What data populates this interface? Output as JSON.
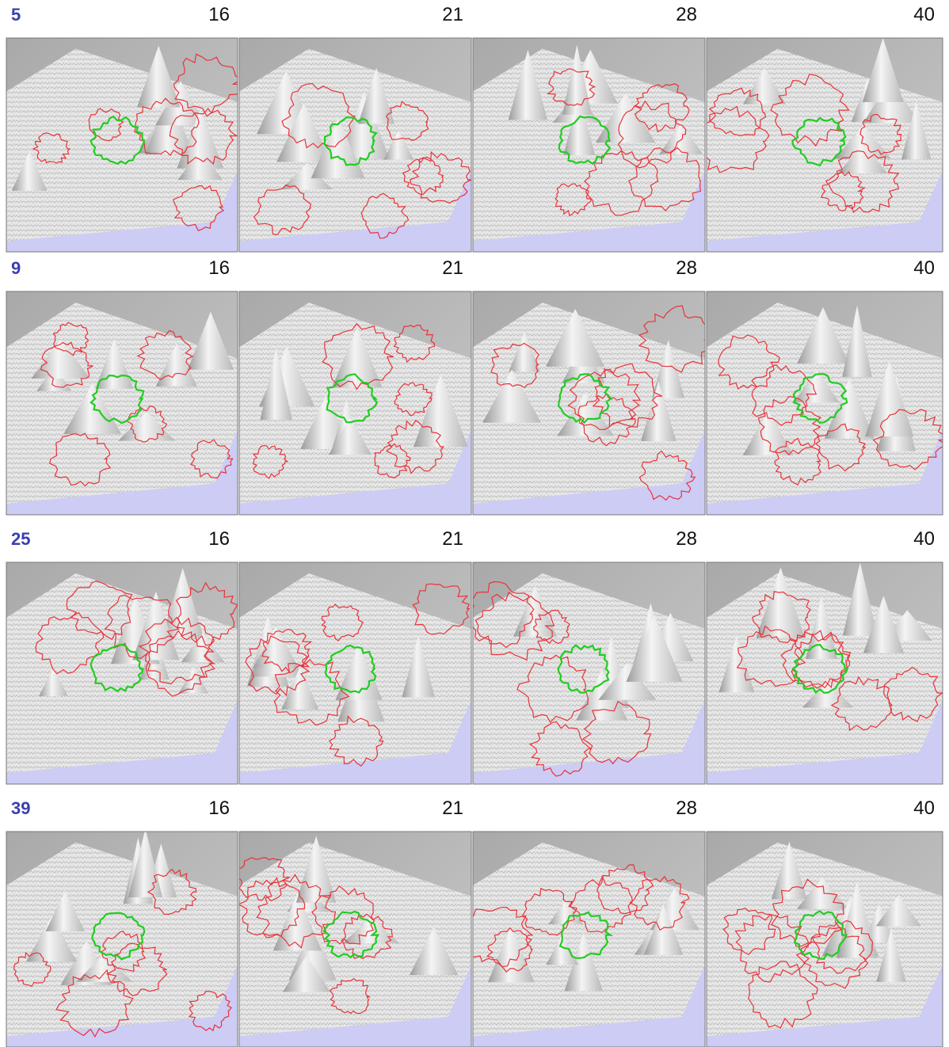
{
  "rows": [
    {
      "label": "5",
      "panels": [
        "16",
        "21",
        "28",
        "40"
      ]
    },
    {
      "label": "9",
      "panels": [
        "16",
        "21",
        "28",
        "40"
      ]
    },
    {
      "label": "25",
      "panels": [
        "16",
        "21",
        "28",
        "40"
      ]
    },
    {
      "label": "39",
      "panels": [
        "16",
        "21",
        "28",
        "40"
      ]
    }
  ]
}
